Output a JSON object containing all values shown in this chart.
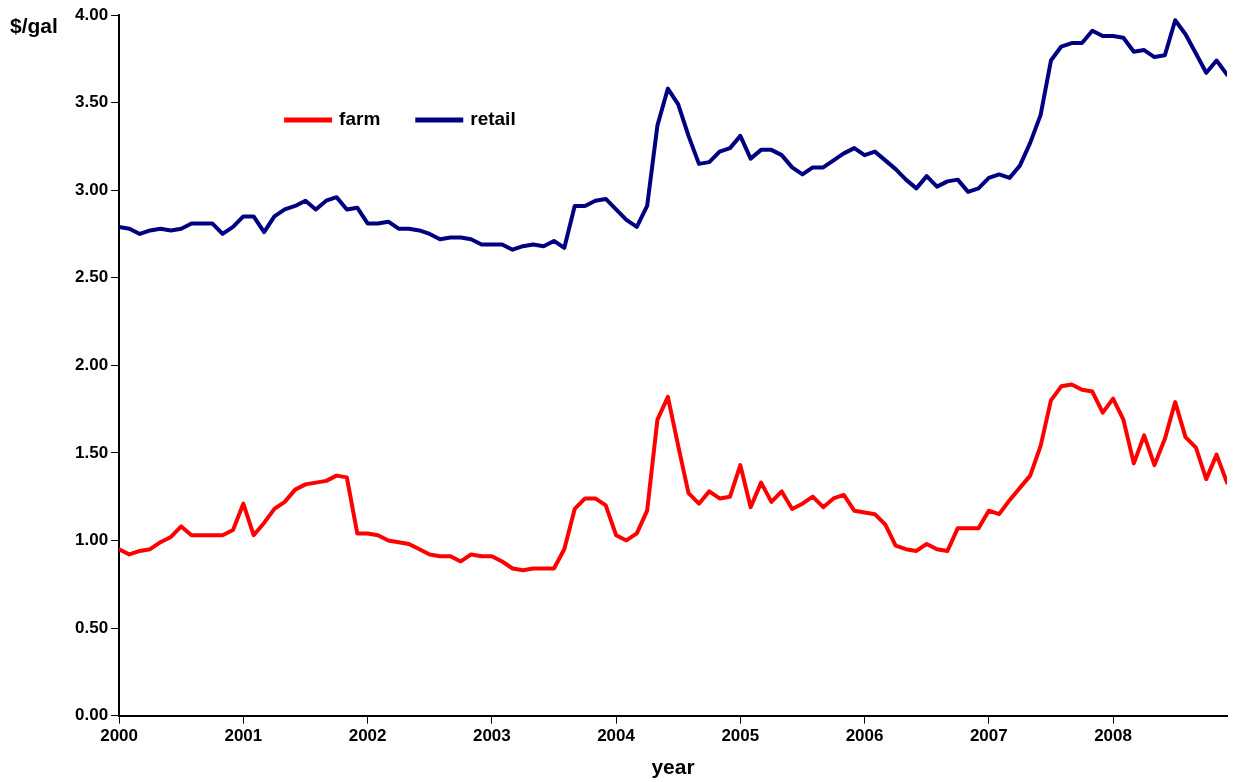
{
  "chart_data": {
    "type": "line",
    "xlabel": "year",
    "ylabel": "$/gal",
    "x": [
      2000,
      2000.083,
      2000.167,
      2000.25,
      2000.333,
      2000.417,
      2000.5,
      2000.583,
      2000.667,
      2000.75,
      2000.833,
      2000.917,
      2001,
      2001.083,
      2001.167,
      2001.25,
      2001.333,
      2001.417,
      2001.5,
      2001.583,
      2001.667,
      2001.75,
      2001.833,
      2001.917,
      2002,
      2002.083,
      2002.167,
      2002.25,
      2002.333,
      2002.417,
      2002.5,
      2002.583,
      2002.667,
      2002.75,
      2002.833,
      2002.917,
      2003,
      2003.083,
      2003.167,
      2003.25,
      2003.333,
      2003.417,
      2003.5,
      2003.583,
      2003.667,
      2003.75,
      2003.833,
      2003.917,
      2004,
      2004.083,
      2004.167,
      2004.25,
      2004.333,
      2004.417,
      2004.5,
      2004.583,
      2004.667,
      2004.75,
      2004.833,
      2004.917,
      2005,
      2005.083,
      2005.167,
      2005.25,
      2005.333,
      2005.417,
      2005.5,
      2005.583,
      2005.667,
      2005.75,
      2005.833,
      2005.917,
      2006,
      2006.083,
      2006.167,
      2006.25,
      2006.333,
      2006.417,
      2006.5,
      2006.583,
      2006.667,
      2006.75,
      2006.833,
      2006.917,
      2007,
      2007.083,
      2007.167,
      2007.25,
      2007.333,
      2007.417,
      2007.5,
      2007.583,
      2007.667,
      2007.75,
      2007.833,
      2007.917,
      2008,
      2008.083,
      2008.167,
      2008.25,
      2008.333,
      2008.417,
      2008.5,
      2008.583,
      2008.667,
      2008.75,
      2008.833,
      2008.917
    ],
    "series": [
      {
        "name": "farm",
        "color": "#ff0000",
        "values": [
          0.95,
          0.92,
          0.94,
          0.95,
          0.99,
          1.02,
          1.08,
          1.03,
          1.03,
          1.03,
          1.03,
          1.06,
          1.21,
          1.03,
          1.1,
          1.18,
          1.22,
          1.29,
          1.32,
          1.33,
          1.34,
          1.37,
          1.36,
          1.04,
          1.04,
          1.03,
          1.0,
          0.99,
          0.98,
          0.95,
          0.92,
          0.91,
          0.91,
          0.88,
          0.92,
          0.91,
          0.91,
          0.88,
          0.84,
          0.83,
          0.84,
          0.84,
          0.84,
          0.95,
          1.18,
          1.24,
          1.24,
          1.2,
          1.03,
          1.0,
          1.04,
          1.17,
          1.69,
          1.82,
          1.54,
          1.27,
          1.21,
          1.28,
          1.24,
          1.25,
          1.43,
          1.19,
          1.33,
          1.22,
          1.28,
          1.18,
          1.21,
          1.25,
          1.19,
          1.24,
          1.26,
          1.17,
          1.16,
          1.15,
          1.09,
          0.97,
          0.95,
          0.94,
          0.98,
          0.95,
          0.94,
          1.07,
          1.07,
          1.07,
          1.17,
          1.15,
          1.23,
          1.3,
          1.37,
          1.54,
          1.8,
          1.88,
          1.89,
          1.86,
          1.85,
          1.73,
          1.81,
          1.69,
          1.44,
          1.6,
          1.43,
          1.58,
          1.79,
          1.59,
          1.53,
          1.35,
          1.49,
          1.33
        ]
      },
      {
        "name": "retail",
        "color": "#000080",
        "values": [
          2.79,
          2.78,
          2.75,
          2.77,
          2.78,
          2.77,
          2.78,
          2.81,
          2.81,
          2.81,
          2.75,
          2.79,
          2.85,
          2.85,
          2.76,
          2.85,
          2.89,
          2.91,
          2.94,
          2.89,
          2.94,
          2.96,
          2.89,
          2.9,
          2.81,
          2.81,
          2.82,
          2.78,
          2.78,
          2.77,
          2.75,
          2.72,
          2.73,
          2.73,
          2.72,
          2.69,
          2.69,
          2.69,
          2.66,
          2.68,
          2.69,
          2.68,
          2.71,
          2.67,
          2.91,
          2.91,
          2.94,
          2.95,
          2.89,
          2.83,
          2.79,
          2.91,
          3.37,
          3.58,
          3.49,
          3.31,
          3.15,
          3.16,
          3.22,
          3.24,
          3.31,
          3.18,
          3.23,
          3.23,
          3.2,
          3.13,
          3.09,
          3.13,
          3.13,
          3.17,
          3.21,
          3.24,
          3.2,
          3.22,
          3.17,
          3.12,
          3.06,
          3.01,
          3.08,
          3.02,
          3.05,
          3.06,
          2.99,
          3.01,
          3.07,
          3.09,
          3.07,
          3.14,
          3.27,
          3.43,
          3.74,
          3.82,
          3.84,
          3.84,
          3.91,
          3.88,
          3.88,
          3.87,
          3.79,
          3.8,
          3.76,
          3.77,
          3.97,
          3.89,
          3.78,
          3.67,
          3.74,
          3.66
        ]
      }
    ],
    "xlim": [
      2000,
      2008.917
    ],
    "xticks": [
      2000,
      2001,
      2002,
      2003,
      2004,
      2005,
      2006,
      2007,
      2008
    ],
    "ylim": [
      0,
      4
    ],
    "yticks": [
      {
        "value": 0,
        "label": "0.00"
      },
      {
        "value": 0.5,
        "label": "0.50"
      },
      {
        "value": 1,
        "label": "1.00"
      },
      {
        "value": 1.5,
        "label": "1.50"
      },
      {
        "value": 2,
        "label": "2.00"
      },
      {
        "value": 2.5,
        "label": "2.50"
      },
      {
        "value": 3,
        "label": "3.00"
      },
      {
        "value": 3.5,
        "label": "3.50"
      },
      {
        "value": 4,
        "label": "4.00"
      }
    ],
    "grid": false,
    "legend": "top left",
    "marker": "none",
    "line_style": "solid"
  }
}
